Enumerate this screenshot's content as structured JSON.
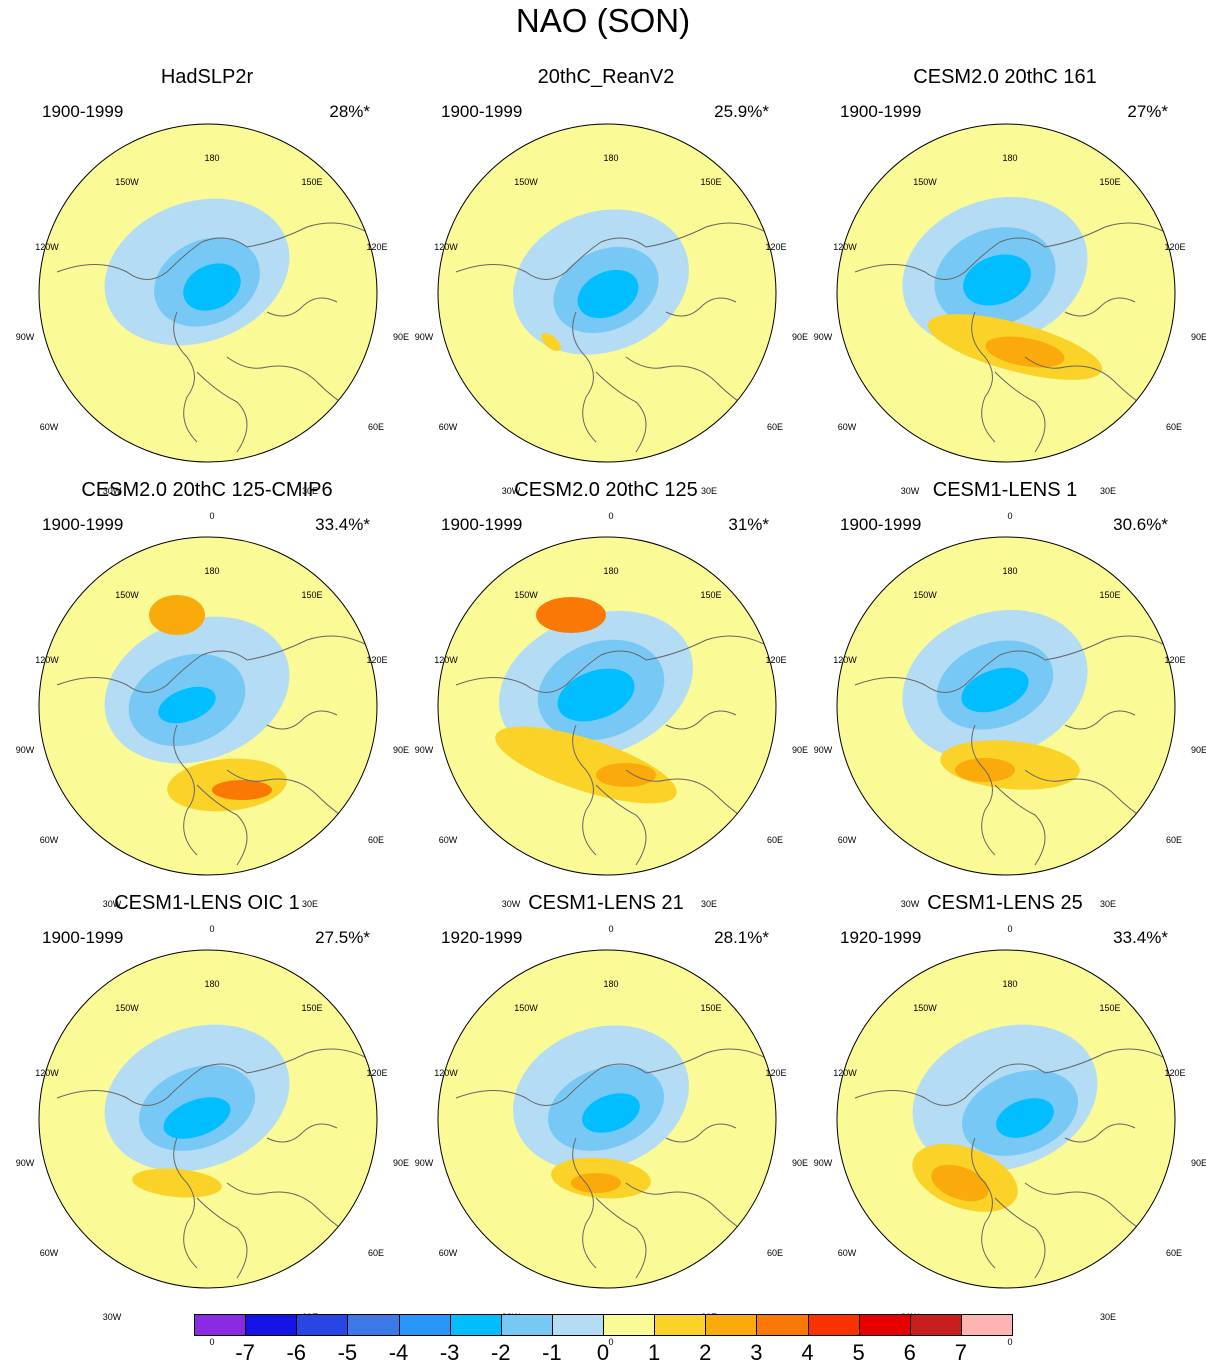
{
  "title": "NAO (SON)",
  "chart_data": {
    "type": "polar-contour-map",
    "title": "NAO (SON)",
    "projection": "north polar stereographic",
    "longitude_labels": [
      "180",
      "150W",
      "150E",
      "120W",
      "120E",
      "90W",
      "90E",
      "60W",
      "60E",
      "30W",
      "30E",
      "0"
    ],
    "panels": [
      {
        "title": "HadSLP2r",
        "period": "1900-1999",
        "variance": "28%*"
      },
      {
        "title": "20thC_ReanV2",
        "period": "1900-1999",
        "variance": "25.9%*"
      },
      {
        "title": "CESM2.0 20thC 161",
        "period": "1900-1999",
        "variance": "27%*"
      },
      {
        "title": "CESM2.0 20thC 125-CMIP6",
        "period": "1900-1999",
        "variance": "33.4%*"
      },
      {
        "title": "CESM2.0 20thC 125",
        "period": "1900-1999",
        "variance": "31%*"
      },
      {
        "title": "CESM1-LENS 1",
        "period": "1900-1999",
        "variance": "30.6%*"
      },
      {
        "title": "CESM1-LENS OIC 1",
        "period": "1900-1999",
        "variance": "27.5%*"
      },
      {
        "title": "CESM1-LENS 21",
        "period": "1920-1999",
        "variance": "28.1%*"
      },
      {
        "title": "CESM1-LENS 25",
        "period": "1920-1999",
        "variance": "33.4%*"
      }
    ],
    "colorbar": {
      "ticks": [
        "-7",
        "-6",
        "-5",
        "-4",
        "-3",
        "-2",
        "-1",
        "0",
        "1",
        "2",
        "3",
        "4",
        "5",
        "6",
        "7"
      ],
      "colors": [
        "#8a2be2",
        "#1414e6",
        "#2846e6",
        "#3c78e6",
        "#2896fa",
        "#00beff",
        "#78c8f5",
        "#b4dcf5",
        "#fafa96",
        "#fad228",
        "#faaa0a",
        "#fa7805",
        "#fa3200",
        "#e60000",
        "#c81e1e",
        "#ffb4b4"
      ]
    }
  }
}
